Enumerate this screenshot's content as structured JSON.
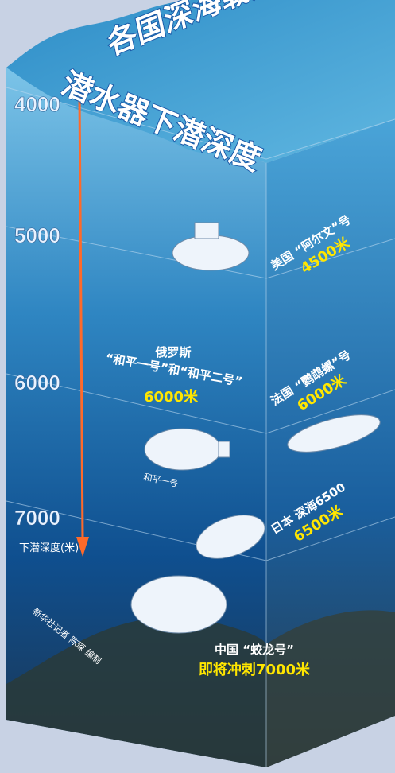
{
  "title": {
    "line1": "各国深海载人",
    "line2": "潜水器下潜深度"
  },
  "depth_scale": {
    "ticks": [
      "4000",
      "5000",
      "6000",
      "7000"
    ],
    "axis_label": "下潜深度(米)"
  },
  "submersibles": [
    {
      "country": "美国",
      "name": "“阿尔文”号",
      "depth": "4500米"
    },
    {
      "country": "俄罗斯",
      "name": "“和平一号”和“和平二号”",
      "depth": "6000米",
      "caption": "和平一号"
    },
    {
      "country": "法国",
      "name": "“鹦鹉螺”号",
      "depth": "6000米"
    },
    {
      "country": "日本",
      "name": "深海6500",
      "depth": "6500米"
    },
    {
      "country": "中国",
      "name": "“蛟龙号”",
      "depth": "即将冲刺7000米"
    }
  ],
  "credit": "新华社记者 陈琛 编制"
}
